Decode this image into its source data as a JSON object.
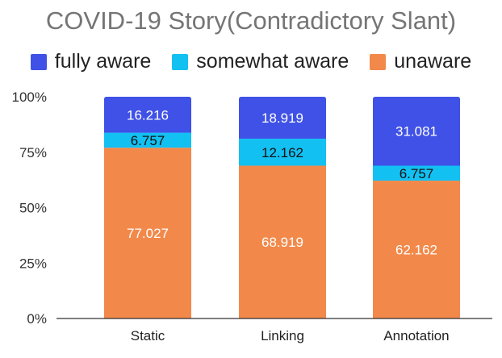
{
  "chart_data": {
    "type": "bar",
    "stacked": true,
    "percent": true,
    "title": "COVID-19 Story(Contradictory Slant)",
    "xlabel": "",
    "ylabel": "",
    "categories": [
      "Static",
      "Linking",
      "Annotation"
    ],
    "series": [
      {
        "name": "unaware",
        "color": "#F2894A",
        "values": [
          77.027,
          68.919,
          62.162
        ],
        "labels": [
          "77.027",
          "68.919",
          "62.162"
        ]
      },
      {
        "name": "somewhat aware",
        "color": "#13C0F2",
        "values": [
          6.757,
          12.162,
          6.757
        ],
        "labels": [
          "6.757",
          "12.162",
          "6.757"
        ]
      },
      {
        "name": "fully aware",
        "color": "#3F51E6",
        "values": [
          16.216,
          18.919,
          31.081
        ],
        "labels": [
          "16.216",
          "18.919",
          "31.081"
        ]
      }
    ],
    "legend_order": [
      "fully aware",
      "somewhat aware",
      "unaware"
    ],
    "legend_position": "top",
    "ylim": [
      0,
      100
    ],
    "yticks": [
      "0%",
      "25%",
      "50%",
      "75%",
      "100%"
    ],
    "grid": false
  }
}
